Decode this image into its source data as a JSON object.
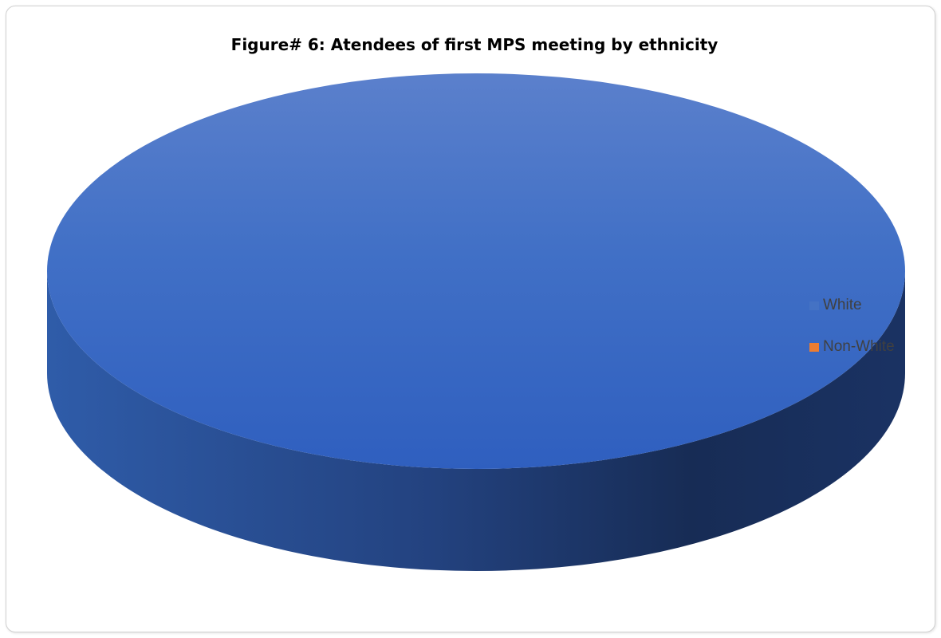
{
  "chart_data": {
    "type": "pie",
    "title": "Figure# 6: Atendees of first MPS meeting by ethnicity",
    "categories": [
      "White",
      "Non-White"
    ],
    "values": [
      100,
      0
    ],
    "colors": {
      "White": "#4472c4",
      "Non-White": "#ed7d31"
    },
    "legend_position": "right",
    "style": "3d"
  }
}
